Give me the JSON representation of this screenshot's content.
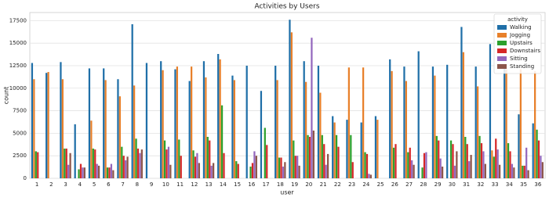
{
  "chart_data": {
    "type": "bar",
    "title": "Activities by Users",
    "x_label": "user",
    "y_label": "count",
    "legend_title": "activity",
    "legend_position": "upper right",
    "grid": true,
    "categories": [
      "1",
      "2",
      "3",
      "4",
      "5",
      "6",
      "7",
      "8",
      "9",
      "10",
      "11",
      "12",
      "13",
      "14",
      "15",
      "16",
      "17",
      "18",
      "19",
      "20",
      "21",
      "22",
      "23",
      "24",
      "25",
      "26",
      "27",
      "28",
      "29",
      "30",
      "31",
      "32",
      "33",
      "34",
      "35",
      "36"
    ],
    "ylim": [
      0,
      18400
    ],
    "yticks": [
      0,
      2500,
      5000,
      7500,
      10000,
      12500,
      15000,
      17500
    ],
    "series": [
      {
        "name": "Walking",
        "color": "#1f6fa8",
        "values": [
          12800,
          11700,
          12900,
          6000,
          12200,
          12200,
          11000,
          17100,
          12800,
          13000,
          12100,
          10800,
          13000,
          13800,
          11400,
          12500,
          9700,
          12500,
          17600,
          13000,
          12500,
          6900,
          6500,
          6200,
          6900,
          13200,
          12400,
          14100,
          12400,
          12600,
          16800,
          12400,
          14900,
          12400,
          7100,
          6100
        ]
      },
      {
        "name": "Jogging",
        "color": "#e8802a",
        "values": [
          11000,
          11800,
          11000,
          null,
          6400,
          10900,
          9100,
          10300,
          null,
          12000,
          12400,
          12400,
          11200,
          13200,
          10900,
          null,
          null,
          10900,
          16200,
          10700,
          9500,
          6200,
          12300,
          12300,
          6500,
          11900,
          10800,
          null,
          11400,
          null,
          14000,
          10200,
          3100,
          12100,
          12100,
          11900
        ]
      },
      {
        "name": "Upstairs",
        "color": "#2ca02c",
        "values": [
          3000,
          null,
          3300,
          1000,
          3300,
          1200,
          3500,
          4400,
          null,
          4200,
          4300,
          3100,
          4600,
          8100,
          1900,
          1300,
          5600,
          2300,
          4200,
          4800,
          4800,
          4800,
          4800,
          2900,
          null,
          3400,
          2900,
          1200,
          4700,
          4200,
          4600,
          4700,
          2400,
          3900,
          1400,
          5400
        ]
      },
      {
        "name": "Downstairs",
        "color": "#d62728",
        "values": [
          2900,
          null,
          3300,
          1600,
          3200,
          1200,
          2500,
          3300,
          null,
          3200,
          2500,
          2400,
          4200,
          2800,
          1600,
          1700,
          3700,
          2300,
          2500,
          4600,
          3800,
          3500,
          1800,
          2700,
          null,
          3800,
          3400,
          2800,
          4200,
          3800,
          3800,
          3900,
          4400,
          3000,
          1400,
          4200
        ]
      },
      {
        "name": "Sitting",
        "color": "#9467bd",
        "values": [
          null,
          null,
          1500,
          1200,
          1600,
          1600,
          2000,
          2800,
          null,
          3500,
          null,
          2800,
          1400,
          null,
          null,
          3000,
          null,
          1300,
          2500,
          15600,
          1500,
          null,
          null,
          500,
          null,
          null,
          2000,
          2900,
          2200,
          1400,
          1900,
          3000,
          3200,
          1600,
          3400,
          2500
        ]
      },
      {
        "name": "Standing",
        "color": "#8c564b",
        "values": [
          null,
          null,
          2800,
          1200,
          1400,
          900,
          2400,
          3200,
          null,
          1500,
          null,
          1700,
          1700,
          null,
          null,
          2500,
          null,
          1800,
          1400,
          5300,
          2700,
          null,
          null,
          400,
          null,
          null,
          1500,
          null,
          1300,
          3000,
          2600,
          1600,
          1500,
          1200,
          900,
          1800
        ]
      }
    ]
  }
}
